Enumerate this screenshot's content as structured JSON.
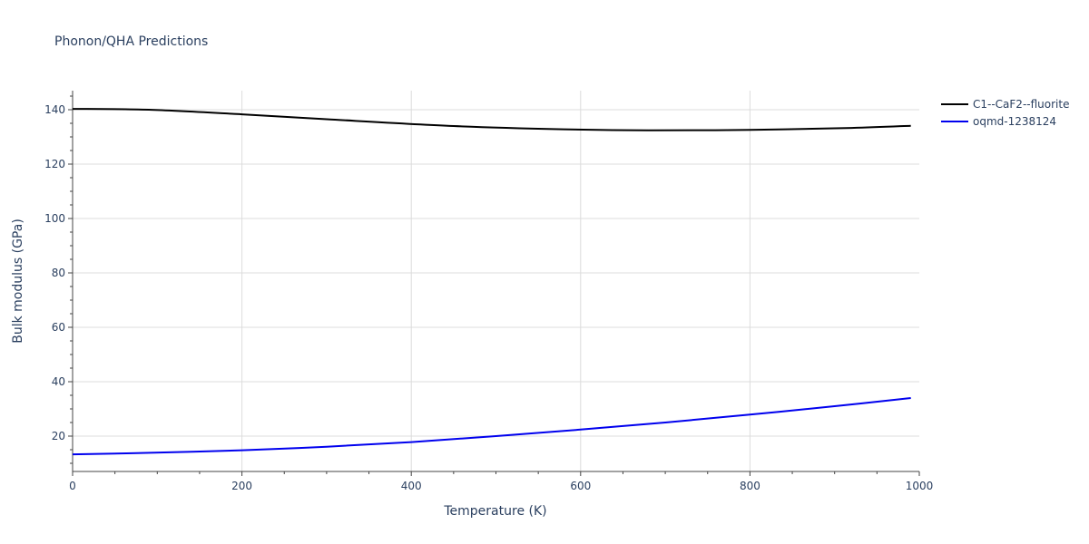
{
  "chart_data": {
    "type": "line",
    "title": "Phonon/QHA Predictions",
    "xlabel": "Temperature (K)",
    "ylabel": "Bulk modulus (GPa)",
    "xlim": [
      0,
      1000
    ],
    "ylim": [
      7,
      147
    ],
    "xticks": [
      0,
      200,
      400,
      600,
      800,
      1000
    ],
    "yticks": [
      20,
      40,
      60,
      80,
      100,
      120,
      140
    ],
    "grid": true,
    "legend_position": "top-right",
    "series": [
      {
        "name": "C1--CaF2--fluorite",
        "color": "#000000",
        "x": [
          0,
          90,
          200,
          300,
          450,
          580,
          680,
          800,
          920,
          990
        ],
        "y": [
          140.3,
          140.0,
          138.3,
          136.5,
          134.0,
          132.8,
          132.4,
          132.6,
          133.3,
          134.1
        ]
      },
      {
        "name": "oqmd-1238124",
        "color": "#0000ee",
        "x": [
          0,
          70,
          200,
          300,
          400,
          500,
          600,
          700,
          800,
          900,
          990
        ],
        "y": [
          13.3,
          13.7,
          14.8,
          16.1,
          17.8,
          20.0,
          22.4,
          25.0,
          27.9,
          31.0,
          34.0
        ]
      }
    ]
  }
}
